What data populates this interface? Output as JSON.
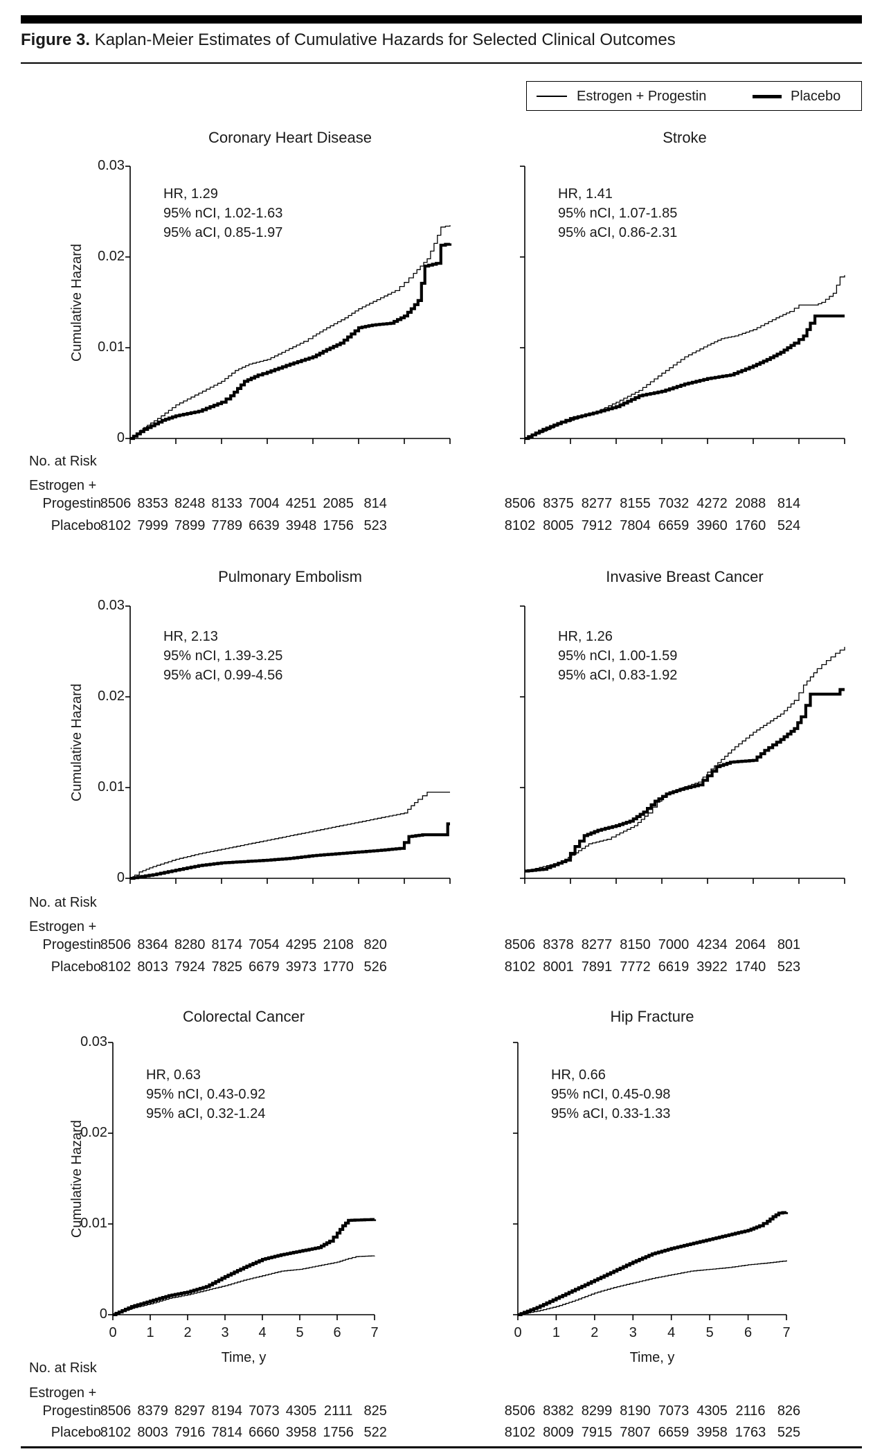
{
  "figure": {
    "label": "Figure 3.",
    "title": "Kaplan-Meier Estimates of Cumulative Hazards for Selected Clinical Outcomes"
  },
  "legend": {
    "items": [
      {
        "label": "Estrogen + Progestin",
        "style": "thin"
      },
      {
        "label": "Placebo",
        "style": "thick"
      }
    ]
  },
  "axes": {
    "ylabel": "Cumulative Hazard",
    "xlabel": "Time, y",
    "yticks": [
      "0.03",
      "0.02",
      "0.01",
      "0"
    ],
    "ytick_values": [
      0.03,
      0.02,
      0.01,
      0
    ],
    "xticks": [
      "0",
      "1",
      "2",
      "3",
      "4",
      "5",
      "6",
      "7"
    ],
    "ylim": [
      0,
      0.03
    ],
    "xlim": [
      0,
      7
    ],
    "grid": false
  },
  "risk_table": {
    "heading": "No. at Risk",
    "group1_line1": "Estrogen +",
    "group1_line2": "Progestin",
    "group2": "Placebo"
  },
  "line_color": "#000000",
  "chart_data": [
    {
      "type": "line",
      "title": "Coronary Heart Disease",
      "annotation": {
        "hr": "HR, 1.29",
        "nci": "95% nCI, 1.02-1.63",
        "aci": "95% aCI, 0.85-1.97"
      },
      "series": [
        {
          "name": "Estrogen + Progestin",
          "style": "thin",
          "x": [
            0,
            0.3,
            0.6,
            1,
            1.5,
            2,
            2.3,
            2.6,
            3,
            3.4,
            3.8,
            4,
            4.3,
            4.7,
            5,
            5.4,
            5.8,
            6,
            6.2,
            6.5,
            6.65,
            6.8,
            7
          ],
          "y": [
            0,
            0.0012,
            0.0022,
            0.0037,
            0.005,
            0.0063,
            0.0075,
            0.0082,
            0.0087,
            0.0097,
            0.0107,
            0.0113,
            0.0122,
            0.0133,
            0.0143,
            0.0153,
            0.0163,
            0.0172,
            0.0182,
            0.0198,
            0.0215,
            0.0233,
            0.0235
          ]
        },
        {
          "name": "Placebo",
          "style": "thick",
          "x": [
            0,
            0.3,
            0.7,
            1,
            1.5,
            2,
            2.2,
            2.5,
            2.8,
            3,
            3.5,
            4,
            4.3,
            4.6,
            5,
            5.3,
            5.7,
            6,
            6.15,
            6.3,
            6.45,
            6.7,
            6.8,
            7
          ],
          "y": [
            0,
            0.001,
            0.002,
            0.0025,
            0.003,
            0.004,
            0.0047,
            0.0063,
            0.007,
            0.0073,
            0.0082,
            0.009,
            0.0098,
            0.0105,
            0.0122,
            0.0125,
            0.0127,
            0.0135,
            0.0143,
            0.0152,
            0.019,
            0.0193,
            0.0213,
            0.0215
          ]
        }
      ],
      "risk": {
        "estrogen_progestin": [
          "8506",
          "8353",
          "8248",
          "8133",
          "7004",
          "4251",
          "2085",
          "814"
        ],
        "placebo": [
          "8102",
          "7999",
          "7899",
          "7789",
          "6639",
          "3948",
          "1756",
          "523"
        ]
      }
    },
    {
      "type": "line",
      "title": "Stroke",
      "annotation": {
        "hr": "HR, 1.41",
        "nci": "95% nCI, 1.07-1.85",
        "aci": "95% aCI, 0.86-2.31"
      },
      "series": [
        {
          "name": "Estrogen + Progestin",
          "style": "thin",
          "x": [
            0,
            0.4,
            0.8,
            1,
            1.5,
            2,
            2.5,
            3,
            3.5,
            4,
            4.3,
            4.6,
            5,
            5.5,
            5.8,
            6,
            6.35,
            6.5,
            6.75,
            6.9,
            7
          ],
          "y": [
            0,
            0.0008,
            0.0017,
            0.002,
            0.0028,
            0.004,
            0.0053,
            0.0072,
            0.009,
            0.0103,
            0.011,
            0.0113,
            0.012,
            0.0133,
            0.014,
            0.0147,
            0.0147,
            0.015,
            0.016,
            0.0178,
            0.018
          ]
        },
        {
          "name": "Placebo",
          "style": "thick",
          "x": [
            0,
            0.4,
            0.8,
            1,
            1.5,
            2,
            2.5,
            3,
            3.5,
            4,
            4.5,
            5,
            5.3,
            5.6,
            5.9,
            6.1,
            6.25,
            6.35,
            7
          ],
          "y": [
            0,
            0.001,
            0.0018,
            0.0022,
            0.0028,
            0.0035,
            0.0047,
            0.0052,
            0.006,
            0.0066,
            0.007,
            0.008,
            0.0087,
            0.0095,
            0.0105,
            0.0113,
            0.0127,
            0.0135,
            0.0135
          ]
        }
      ],
      "risk": {
        "estrogen_progestin": [
          "8506",
          "8375",
          "8277",
          "8155",
          "7032",
          "4272",
          "2088",
          "814"
        ],
        "placebo": [
          "8102",
          "8005",
          "7912",
          "7804",
          "6659",
          "3960",
          "1760",
          "524"
        ]
      }
    },
    {
      "type": "line",
      "title": "Pulmonary Embolism",
      "annotation": {
        "hr": "HR, 2.13",
        "nci": "95% nCI, 1.39-3.25",
        "aci": "95% aCI, 0.99-4.56"
      },
      "series": [
        {
          "name": "Estrogen + Progestin",
          "style": "thin",
          "x": [
            0,
            0.2,
            0.5,
            1,
            1.5,
            2,
            2.5,
            3,
            3.5,
            4,
            4.5,
            5,
            5.5,
            6,
            6.15,
            6.3,
            6.5,
            7
          ],
          "y": [
            0,
            0.0007,
            0.0013,
            0.0021,
            0.0027,
            0.0032,
            0.0037,
            0.0042,
            0.0047,
            0.0052,
            0.0057,
            0.0062,
            0.0067,
            0.0072,
            0.008,
            0.0087,
            0.0095,
            0.0095
          ]
        },
        {
          "name": "Placebo",
          "style": "thick",
          "x": [
            0,
            0.5,
            1,
            1.5,
            2,
            3,
            3.5,
            4,
            4.5,
            5,
            5.5,
            5.9,
            6.1,
            6.4,
            6.85,
            6.95,
            7
          ],
          "y": [
            0,
            0.0004,
            0.0009,
            0.0014,
            0.0017,
            0.002,
            0.0022,
            0.0025,
            0.0027,
            0.0029,
            0.0031,
            0.0033,
            0.0046,
            0.0048,
            0.0048,
            0.006,
            0.006
          ]
        }
      ],
      "risk": {
        "estrogen_progestin": [
          "8506",
          "8364",
          "8280",
          "8174",
          "7054",
          "4295",
          "2108",
          "820"
        ],
        "placebo": [
          "8102",
          "8013",
          "7924",
          "7825",
          "6679",
          "3973",
          "1770",
          "526"
        ]
      }
    },
    {
      "type": "line",
      "title": "Invasive Breast Cancer",
      "annotation": {
        "hr": "HR, 1.26",
        "nci": "95% nCI, 1.00-1.59",
        "aci": "95% aCI, 0.83-1.92"
      },
      "series": [
        {
          "name": "Estrogen + Progestin",
          "style": "thin",
          "x": [
            0,
            0.4,
            0.8,
            1.1,
            1.4,
            1.8,
            2,
            2.4,
            2.7,
            2.9,
            3.1,
            3.5,
            3.8,
            4,
            4.3,
            4.6,
            5,
            5.3,
            5.6,
            5.9,
            6.1,
            6.4,
            6.6,
            6.8,
            7
          ],
          "y": [
            0.0008,
            0.0013,
            0.0018,
            0.0028,
            0.0038,
            0.0043,
            0.0048,
            0.0058,
            0.0072,
            0.0085,
            0.0093,
            0.0101,
            0.0106,
            0.0117,
            0.0131,
            0.0145,
            0.0161,
            0.0171,
            0.0181,
            0.0196,
            0.0213,
            0.0231,
            0.024,
            0.0248,
            0.0255
          ]
        },
        {
          "name": "Placebo",
          "style": "thick",
          "x": [
            0,
            0.4,
            0.9,
            1.1,
            1.3,
            1.6,
            2,
            2.3,
            2.6,
            2.85,
            3.1,
            3.4,
            3.8,
            4,
            4.2,
            4.5,
            5,
            5.25,
            5.6,
            5.9,
            6.05,
            6.25,
            6.8,
            6.9,
            7
          ],
          "y": [
            0.0008,
            0.001,
            0.002,
            0.0035,
            0.0047,
            0.0053,
            0.0058,
            0.0063,
            0.0073,
            0.0085,
            0.0093,
            0.0098,
            0.0103,
            0.0113,
            0.0123,
            0.0128,
            0.013,
            0.0141,
            0.0153,
            0.0165,
            0.0178,
            0.0203,
            0.0203,
            0.0208,
            0.0208
          ]
        }
      ],
      "risk": {
        "estrogen_progestin": [
          "8506",
          "8378",
          "8277",
          "8150",
          "7000",
          "4234",
          "2064",
          "801"
        ],
        "placebo": [
          "8102",
          "8001",
          "7891",
          "7772",
          "6619",
          "3922",
          "1740",
          "523"
        ]
      }
    },
    {
      "type": "line",
      "title": "Colorectal Cancer",
      "annotation": {
        "hr": "HR, 0.63",
        "nci": "95% nCI, 0.43-0.92",
        "aci": "95% aCI, 0.32-1.24"
      },
      "series": [
        {
          "name": "Estrogen + Progestin",
          "style": "thin",
          "x": [
            0,
            0.5,
            1,
            1.5,
            2,
            2.5,
            3,
            3.5,
            4,
            4.5,
            5,
            5.5,
            6,
            6.3,
            6.5,
            7
          ],
          "y": [
            0,
            0.0007,
            0.0012,
            0.0018,
            0.0022,
            0.0027,
            0.0032,
            0.0038,
            0.0043,
            0.0048,
            0.005,
            0.0054,
            0.0058,
            0.0062,
            0.0064,
            0.0065
          ]
        },
        {
          "name": "Placebo",
          "style": "thick",
          "x": [
            0,
            0.5,
            1,
            1.5,
            2,
            2.5,
            3,
            3.5,
            4,
            4.5,
            5,
            5.5,
            5.8,
            6,
            6.15,
            6.3,
            7
          ],
          "y": [
            0,
            0.0009,
            0.0015,
            0.0021,
            0.0025,
            0.0031,
            0.0042,
            0.0052,
            0.0061,
            0.0066,
            0.007,
            0.0074,
            0.0081,
            0.009,
            0.0098,
            0.0104,
            0.0105
          ]
        }
      ],
      "risk": {
        "estrogen_progestin": [
          "8506",
          "8379",
          "8297",
          "8194",
          "7073",
          "4305",
          "2111",
          "825"
        ],
        "placebo": [
          "8102",
          "8003",
          "7916",
          "7814",
          "6660",
          "3958",
          "1756",
          "522"
        ]
      }
    },
    {
      "type": "line",
      "title": "Hip Fracture",
      "annotation": {
        "hr": "HR, 0.66",
        "nci": "95% nCI, 0.45-0.98",
        "aci": "95% aCI, 0.33-1.33"
      },
      "series": [
        {
          "name": "Estrogen + Progestin",
          "style": "thin",
          "x": [
            0,
            0.5,
            1,
            1.5,
            2,
            2.5,
            3,
            3.5,
            4,
            4.5,
            5,
            5.5,
            6,
            6.5,
            6.9,
            7
          ],
          "y": [
            0,
            0.0004,
            0.0009,
            0.0016,
            0.0024,
            0.003,
            0.0035,
            0.004,
            0.0044,
            0.0048,
            0.005,
            0.0052,
            0.0055,
            0.0057,
            0.0059,
            0.006
          ]
        },
        {
          "name": "Placebo",
          "style": "thick",
          "x": [
            0,
            0.5,
            1,
            1.5,
            2,
            2.5,
            3,
            3.5,
            4,
            4.5,
            5,
            5.5,
            6,
            6.3,
            6.5,
            6.65,
            6.8,
            7
          ],
          "y": [
            0,
            0.0008,
            0.0018,
            0.0028,
            0.0038,
            0.0048,
            0.0058,
            0.0067,
            0.0073,
            0.0078,
            0.0083,
            0.0088,
            0.0093,
            0.0098,
            0.0103,
            0.0108,
            0.0112,
            0.0113
          ]
        }
      ],
      "risk": {
        "estrogen_progestin": [
          "8506",
          "8382",
          "8299",
          "8190",
          "7073",
          "4305",
          "2116",
          "826"
        ],
        "placebo": [
          "8102",
          "8009",
          "7915",
          "7807",
          "6659",
          "3958",
          "1763",
          "525"
        ]
      }
    }
  ]
}
